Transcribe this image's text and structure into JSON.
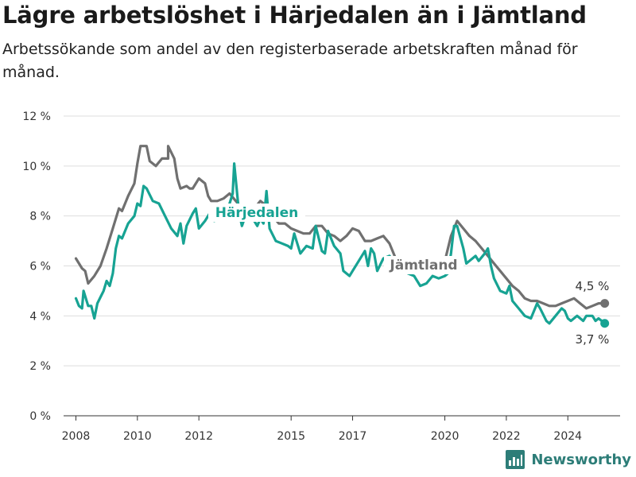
{
  "header": {
    "title": "Lägre arbetslöshet i Härjedalen än i Jämtland",
    "subtitle": "Arbetssökande som andel av den registerbaserade arbetskraften månad för månad."
  },
  "brand": {
    "name": "Newsworthy"
  },
  "colors": {
    "harjedalen": "#17a393",
    "jamtland": "#707070",
    "grid": "#dddddd",
    "brand": "#2d7d78"
  },
  "chart_data": {
    "type": "line",
    "x_unit": "year",
    "xlim": [
      2007.6,
      2025.7
    ],
    "ylim": [
      0,
      12
    ],
    "yticks": [
      0,
      2,
      4,
      6,
      8,
      10,
      12
    ],
    "ytick_labels": [
      "0 %",
      "2 %",
      "4 %",
      "6 %",
      "8 %",
      "10 %",
      "12 %"
    ],
    "xticks": [
      2008,
      2010,
      2012,
      2015,
      2017,
      2020,
      2022,
      2024
    ],
    "xtick_labels": [
      "2008",
      "2010",
      "2012",
      "2015",
      "2017",
      "2020",
      "2022",
      "2024"
    ],
    "grid": "horizontal",
    "series": [
      {
        "name": "Jämtland",
        "end_label": "4,5 %",
        "points": [
          [
            2008.0,
            6.3
          ],
          [
            2008.2,
            5.9
          ],
          [
            2008.3,
            5.8
          ],
          [
            2008.4,
            5.3
          ],
          [
            2008.6,
            5.6
          ],
          [
            2008.8,
            6.0
          ],
          [
            2009.0,
            6.7
          ],
          [
            2009.2,
            7.5
          ],
          [
            2009.4,
            8.3
          ],
          [
            2009.5,
            8.2
          ],
          [
            2009.7,
            8.8
          ],
          [
            2009.9,
            9.3
          ],
          [
            2010.0,
            10.1
          ],
          [
            2010.1,
            10.8
          ],
          [
            2010.3,
            10.8
          ],
          [
            2010.4,
            10.2
          ],
          [
            2010.6,
            10.0
          ],
          [
            2010.8,
            10.3
          ],
          [
            2011.0,
            10.3
          ],
          [
            2011.0,
            10.8
          ],
          [
            2011.2,
            10.3
          ],
          [
            2011.3,
            9.5
          ],
          [
            2011.4,
            9.1
          ],
          [
            2011.6,
            9.2
          ],
          [
            2011.7,
            9.1
          ],
          [
            2011.8,
            9.1
          ],
          [
            2012.0,
            9.5
          ],
          [
            2012.2,
            9.3
          ],
          [
            2012.3,
            8.8
          ],
          [
            2012.4,
            8.6
          ],
          [
            2012.6,
            8.6
          ],
          [
            2012.8,
            8.7
          ],
          [
            2013.0,
            8.9
          ],
          [
            2013.2,
            8.6
          ],
          [
            2013.4,
            8.3
          ],
          [
            2013.6,
            8.1
          ],
          [
            2013.8,
            8.3
          ],
          [
            2014.0,
            8.6
          ],
          [
            2014.2,
            8.4
          ],
          [
            2014.4,
            8.0
          ],
          [
            2014.6,
            7.7
          ],
          [
            2014.8,
            7.7
          ],
          [
            2015.0,
            7.5
          ],
          [
            2015.2,
            7.4
          ],
          [
            2015.4,
            7.3
          ],
          [
            2015.6,
            7.3
          ],
          [
            2015.8,
            7.6
          ],
          [
            2016.0,
            7.6
          ],
          [
            2016.2,
            7.3
          ],
          [
            2016.4,
            7.2
          ],
          [
            2016.6,
            7.0
          ],
          [
            2016.8,
            7.2
          ],
          [
            2017.0,
            7.5
          ],
          [
            2017.2,
            7.4
          ],
          [
            2017.4,
            7.0
          ],
          [
            2017.6,
            7.0
          ],
          [
            2017.8,
            7.1
          ],
          [
            2018.0,
            7.2
          ],
          [
            2018.2,
            6.9
          ],
          [
            2018.4,
            6.3
          ],
          [
            2018.6,
            6.0
          ],
          [
            2018.8,
            5.9
          ],
          [
            2019.0,
            5.8
          ],
          [
            2019.2,
            5.8
          ],
          [
            2019.4,
            5.9
          ],
          [
            2019.6,
            6.0
          ],
          [
            2019.8,
            6.1
          ],
          [
            2020.0,
            6.2
          ],
          [
            2020.2,
            7.2
          ],
          [
            2020.4,
            7.8
          ],
          [
            2020.6,
            7.5
          ],
          [
            2020.8,
            7.2
          ],
          [
            2021.0,
            7.0
          ],
          [
            2021.2,
            6.7
          ],
          [
            2021.4,
            6.4
          ],
          [
            2021.6,
            6.1
          ],
          [
            2021.8,
            5.8
          ],
          [
            2022.0,
            5.5
          ],
          [
            2022.2,
            5.2
          ],
          [
            2022.4,
            5.0
          ],
          [
            2022.6,
            4.7
          ],
          [
            2022.8,
            4.6
          ],
          [
            2023.0,
            4.6
          ],
          [
            2023.2,
            4.5
          ],
          [
            2023.4,
            4.4
          ],
          [
            2023.6,
            4.4
          ],
          [
            2023.8,
            4.5
          ],
          [
            2024.0,
            4.6
          ],
          [
            2024.2,
            4.7
          ],
          [
            2024.4,
            4.5
          ],
          [
            2024.6,
            4.3
          ],
          [
            2024.8,
            4.4
          ],
          [
            2025.0,
            4.5
          ],
          [
            2025.2,
            4.5
          ]
        ]
      },
      {
        "name": "Härjedalen",
        "end_label": "3,7 %",
        "points": [
          [
            2008.0,
            4.7
          ],
          [
            2008.1,
            4.4
          ],
          [
            2008.2,
            4.3
          ],
          [
            2008.25,
            5.0
          ],
          [
            2008.4,
            4.4
          ],
          [
            2008.5,
            4.4
          ],
          [
            2008.6,
            3.9
          ],
          [
            2008.7,
            4.5
          ],
          [
            2008.9,
            5.0
          ],
          [
            2009.0,
            5.4
          ],
          [
            2009.1,
            5.2
          ],
          [
            2009.2,
            5.7
          ],
          [
            2009.3,
            6.7
          ],
          [
            2009.4,
            7.2
          ],
          [
            2009.5,
            7.1
          ],
          [
            2009.7,
            7.7
          ],
          [
            2009.9,
            8.0
          ],
          [
            2010.0,
            8.5
          ],
          [
            2010.1,
            8.4
          ],
          [
            2010.2,
            9.2
          ],
          [
            2010.3,
            9.1
          ],
          [
            2010.5,
            8.6
          ],
          [
            2010.7,
            8.5
          ],
          [
            2010.9,
            8.0
          ],
          [
            2011.1,
            7.5
          ],
          [
            2011.3,
            7.2
          ],
          [
            2011.4,
            7.7
          ],
          [
            2011.5,
            6.9
          ],
          [
            2011.6,
            7.6
          ],
          [
            2011.8,
            8.1
          ],
          [
            2011.9,
            8.3
          ],
          [
            2012.0,
            7.5
          ],
          [
            2012.2,
            7.8
          ],
          [
            2012.4,
            8.2
          ],
          [
            2012.5,
            7.8
          ],
          [
            2012.7,
            7.9
          ],
          [
            2012.9,
            8.3
          ],
          [
            2013.0,
            8.5
          ],
          [
            2013.1,
            8.9
          ],
          [
            2013.15,
            10.1
          ],
          [
            2013.3,
            8.2
          ],
          [
            2013.4,
            7.6
          ],
          [
            2013.6,
            8.3
          ],
          [
            2013.8,
            7.8
          ],
          [
            2013.9,
            7.6
          ],
          [
            2014.0,
            7.9
          ],
          [
            2014.1,
            7.7
          ],
          [
            2014.2,
            9.0
          ],
          [
            2014.3,
            7.5
          ],
          [
            2014.5,
            7.0
          ],
          [
            2014.7,
            6.9
          ],
          [
            2014.9,
            6.8
          ],
          [
            2015.0,
            6.7
          ],
          [
            2015.1,
            7.3
          ],
          [
            2015.2,
            6.9
          ],
          [
            2015.3,
            6.5
          ],
          [
            2015.5,
            6.8
          ],
          [
            2015.7,
            6.7
          ],
          [
            2015.8,
            7.6
          ],
          [
            2016.0,
            6.6
          ],
          [
            2016.1,
            6.5
          ],
          [
            2016.2,
            7.4
          ],
          [
            2016.4,
            6.8
          ],
          [
            2016.6,
            6.5
          ],
          [
            2016.7,
            5.8
          ],
          [
            2016.9,
            5.6
          ],
          [
            2017.0,
            5.8
          ],
          [
            2017.2,
            6.2
          ],
          [
            2017.4,
            6.6
          ],
          [
            2017.5,
            6.0
          ],
          [
            2017.6,
            6.7
          ],
          [
            2017.7,
            6.5
          ],
          [
            2017.8,
            5.8
          ],
          [
            2018.0,
            6.3
          ],
          [
            2018.2,
            6.4
          ],
          [
            2018.4,
            6.1
          ],
          [
            2018.6,
            5.9
          ],
          [
            2018.8,
            5.7
          ],
          [
            2019.0,
            5.6
          ],
          [
            2019.2,
            5.2
          ],
          [
            2019.4,
            5.3
          ],
          [
            2019.6,
            5.6
          ],
          [
            2019.8,
            5.5
          ],
          [
            2020.0,
            5.6
          ],
          [
            2020.1,
            5.7
          ],
          [
            2020.2,
            6.5
          ],
          [
            2020.3,
            7.6
          ],
          [
            2020.4,
            7.6
          ],
          [
            2020.6,
            6.7
          ],
          [
            2020.7,
            6.1
          ],
          [
            2020.8,
            6.2
          ],
          [
            2021.0,
            6.4
          ],
          [
            2021.1,
            6.2
          ],
          [
            2021.3,
            6.5
          ],
          [
            2021.4,
            6.7
          ],
          [
            2021.5,
            6.0
          ],
          [
            2021.6,
            5.5
          ],
          [
            2021.8,
            5.0
          ],
          [
            2022.0,
            4.9
          ],
          [
            2022.1,
            5.2
          ],
          [
            2022.2,
            4.6
          ],
          [
            2022.4,
            4.3
          ],
          [
            2022.6,
            4.0
          ],
          [
            2022.8,
            3.9
          ],
          [
            2023.0,
            4.5
          ],
          [
            2023.1,
            4.3
          ],
          [
            2023.3,
            3.8
          ],
          [
            2023.4,
            3.7
          ],
          [
            2023.6,
            4.0
          ],
          [
            2023.8,
            4.3
          ],
          [
            2023.9,
            4.2
          ],
          [
            2024.0,
            3.9
          ],
          [
            2024.1,
            3.8
          ],
          [
            2024.3,
            4.0
          ],
          [
            2024.5,
            3.8
          ],
          [
            2024.6,
            4.0
          ],
          [
            2024.8,
            4.0
          ],
          [
            2024.9,
            3.8
          ],
          [
            2025.0,
            3.9
          ],
          [
            2025.2,
            3.7
          ]
        ]
      }
    ]
  }
}
